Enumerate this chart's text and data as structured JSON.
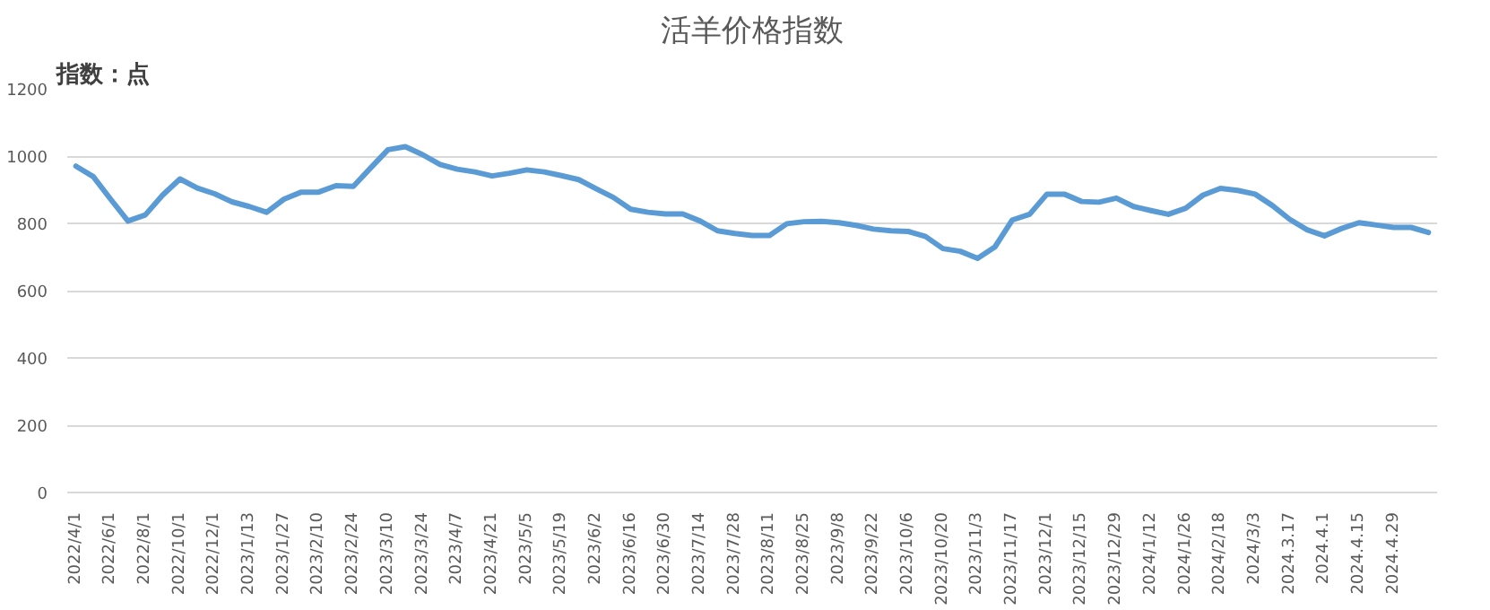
{
  "chart_data": {
    "type": "line",
    "title": "活羊价格指数",
    "ylabel": "指数：点",
    "categories": [
      "2022/4/1",
      null,
      "2022/6/1",
      null,
      "2022/8/1",
      null,
      "2022/10/1",
      null,
      "2022/12/1",
      null,
      "2023/1/13",
      null,
      "2023/1/27",
      null,
      "2023/2/10",
      null,
      "2023/2/24",
      null,
      "2023/3/10",
      null,
      "2023/3/24",
      null,
      "2023/4/7",
      null,
      "2023/4/21",
      null,
      "2023/5/5",
      null,
      "2023/5/19",
      null,
      "2023/6/2",
      null,
      "2023/6/16",
      null,
      "2023/6/30",
      null,
      "2023/7/14",
      null,
      "2023/7/28",
      null,
      "2023/8/11",
      null,
      "2023/8/25",
      null,
      "2023/9/8",
      null,
      "2023/9/22",
      null,
      "2023/10/6",
      null,
      "2023/10/20",
      null,
      "2023/11/3",
      null,
      "2023/11/17",
      null,
      "2023/12/1",
      null,
      "2023/12/15",
      null,
      "2023/12/29",
      null,
      "2024/1/12",
      null,
      "2024/1/26",
      null,
      "2024/2/18",
      null,
      "2024/3/3",
      null,
      "2024.3.17",
      null,
      "2024.4.1",
      null,
      "2024.4.15",
      null,
      "2024.4.29",
      null,
      null
    ],
    "series": [
      {
        "color": "#5b9bd5",
        "values": [
          970,
          939,
          872,
          807,
          825,
          884,
          932,
          905,
          888,
          864,
          850,
          833,
          872,
          893,
          893,
          912,
          910,
          965,
          1019,
          1028,
          1004,
          975,
          961,
          953,
          941,
          949,
          959,
          953,
          942,
          930,
          903,
          877,
          842,
          833,
          828,
          828,
          807,
          778,
          770,
          764,
          764,
          799,
          805,
          806,
          802,
          794,
          783,
          778,
          776,
          761,
          725,
          717,
          696,
          730,
          810,
          827,
          887,
          887,
          865,
          863,
          875,
          850,
          838,
          827,
          845,
          884,
          904,
          898,
          887,
          853,
          812,
          781,
          763,
          785,
          802,
          795,
          788,
          788,
          773
        ]
      }
    ],
    "ylim": [
      0,
      1200
    ],
    "yticks": [
      0,
      200,
      400,
      600,
      800,
      1000,
      1200
    ],
    "grid": "y"
  }
}
